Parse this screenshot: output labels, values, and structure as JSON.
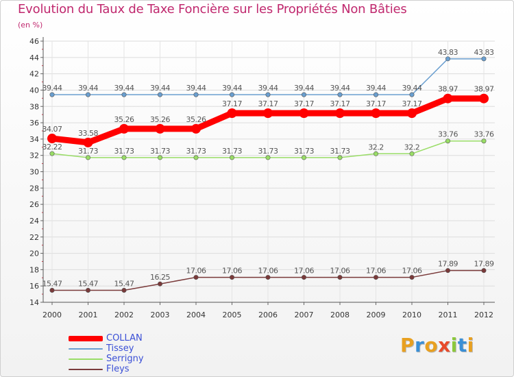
{
  "title": "Evolution du Taux de Taxe Foncière sur les Propriétés Non Bâties",
  "unit_label": "(en %)",
  "logo_text": "Proxiti",
  "chart_data": {
    "type": "line",
    "categories": [
      "2000",
      "2001",
      "2002",
      "2003",
      "2004",
      "2005",
      "2006",
      "2007",
      "2008",
      "2009",
      "2010",
      "2011",
      "2012"
    ],
    "ylim": [
      14,
      46
    ],
    "ytick_step": 2,
    "grid": true,
    "legend_position": "bottom-left",
    "series": [
      {
        "name": "COLLAN",
        "color": "#ff0000",
        "values": [
          34.07,
          33.58,
          35.26,
          35.26,
          35.26,
          37.17,
          37.17,
          37.17,
          37.17,
          37.17,
          37.17,
          38.97,
          38.97
        ],
        "labels": [
          "34.07",
          "33.58",
          "35.26",
          "35.26",
          "35.26",
          "37.17",
          "37.17",
          "37.17",
          "37.17",
          "37.17",
          "37.17",
          "38.97",
          "38.97"
        ]
      },
      {
        "name": "Tissey",
        "color": "#6a9fd0",
        "values": [
          39.44,
          39.44,
          39.44,
          39.44,
          39.44,
          39.44,
          39.44,
          39.44,
          39.44,
          39.44,
          39.44,
          43.83,
          43.83
        ],
        "labels": [
          "39.44",
          "39.44",
          "39.44",
          "39.44",
          "39.44",
          "39.44",
          "39.44",
          "39.44",
          "39.44",
          "39.44",
          "39.44",
          "43.83",
          "43.83"
        ]
      },
      {
        "name": "Serrigny",
        "color": "#99dd66",
        "values": [
          32.22,
          31.73,
          31.73,
          31.73,
          31.73,
          31.73,
          31.73,
          31.73,
          31.73,
          32.2,
          32.2,
          33.76,
          33.76
        ],
        "labels": [
          "32.22",
          "31.73",
          "31.73",
          "31.73",
          "31.73",
          "31.73",
          "31.73",
          "31.73",
          "31.73",
          "32.2",
          "32.2",
          "33.76",
          "33.76"
        ]
      },
      {
        "name": "Fleys",
        "color": "#7a3a3a",
        "values": [
          15.47,
          15.47,
          15.47,
          16.25,
          17.06,
          17.06,
          17.06,
          17.06,
          17.06,
          17.06,
          17.06,
          17.89,
          17.89
        ],
        "labels": [
          "15.47",
          "15.47",
          "15.47",
          "16.25",
          "17.06",
          "17.06",
          "17.06",
          "17.06",
          "17.06",
          "17.06",
          "17.06",
          "17.89",
          "17.89"
        ]
      }
    ]
  }
}
